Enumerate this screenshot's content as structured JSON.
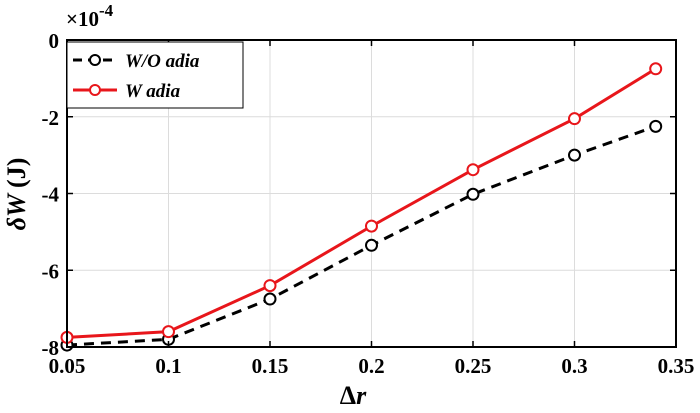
{
  "chart_data": {
    "type": "line",
    "xlabel_symbol": "Δ",
    "xlabel_var": "r",
    "ylabel_symbol": "δ",
    "ylabel_var": "W",
    "ylabel_unit": "(J)",
    "y_multiplier_base": "×10",
    "y_multiplier_exp": "-4",
    "xlim": [
      0.05,
      0.35
    ],
    "ylim": [
      -8,
      0
    ],
    "xticks": [
      0.05,
      0.1,
      0.15,
      0.2,
      0.25,
      0.3,
      0.35
    ],
    "xtick_labels": [
      "0.05",
      "0.1",
      "0.15",
      "0.2",
      "0.25",
      "0.3",
      "0.35"
    ],
    "yticks": [
      0,
      -2,
      -4,
      -6,
      -8
    ],
    "ytick_labels": [
      "0",
      "-2",
      "-4",
      "-6",
      "-8"
    ],
    "grid": true,
    "legend_position": "top-left",
    "series": [
      {
        "name": "W/O adia",
        "color": "#000000",
        "dash": true,
        "marker": "circle",
        "x": [
          0.05,
          0.1,
          0.15,
          0.2,
          0.25,
          0.3,
          0.34
        ],
        "y": [
          -7.95,
          -7.8,
          -6.75,
          -5.35,
          -4.02,
          -3.0,
          -2.25
        ]
      },
      {
        "name": "W adia",
        "color": "#e8161b",
        "dash": false,
        "marker": "circle",
        "x": [
          0.05,
          0.1,
          0.15,
          0.2,
          0.25,
          0.3,
          0.34
        ],
        "y": [
          -7.75,
          -7.6,
          -6.4,
          -4.85,
          -3.38,
          -2.05,
          -0.75
        ]
      }
    ]
  }
}
